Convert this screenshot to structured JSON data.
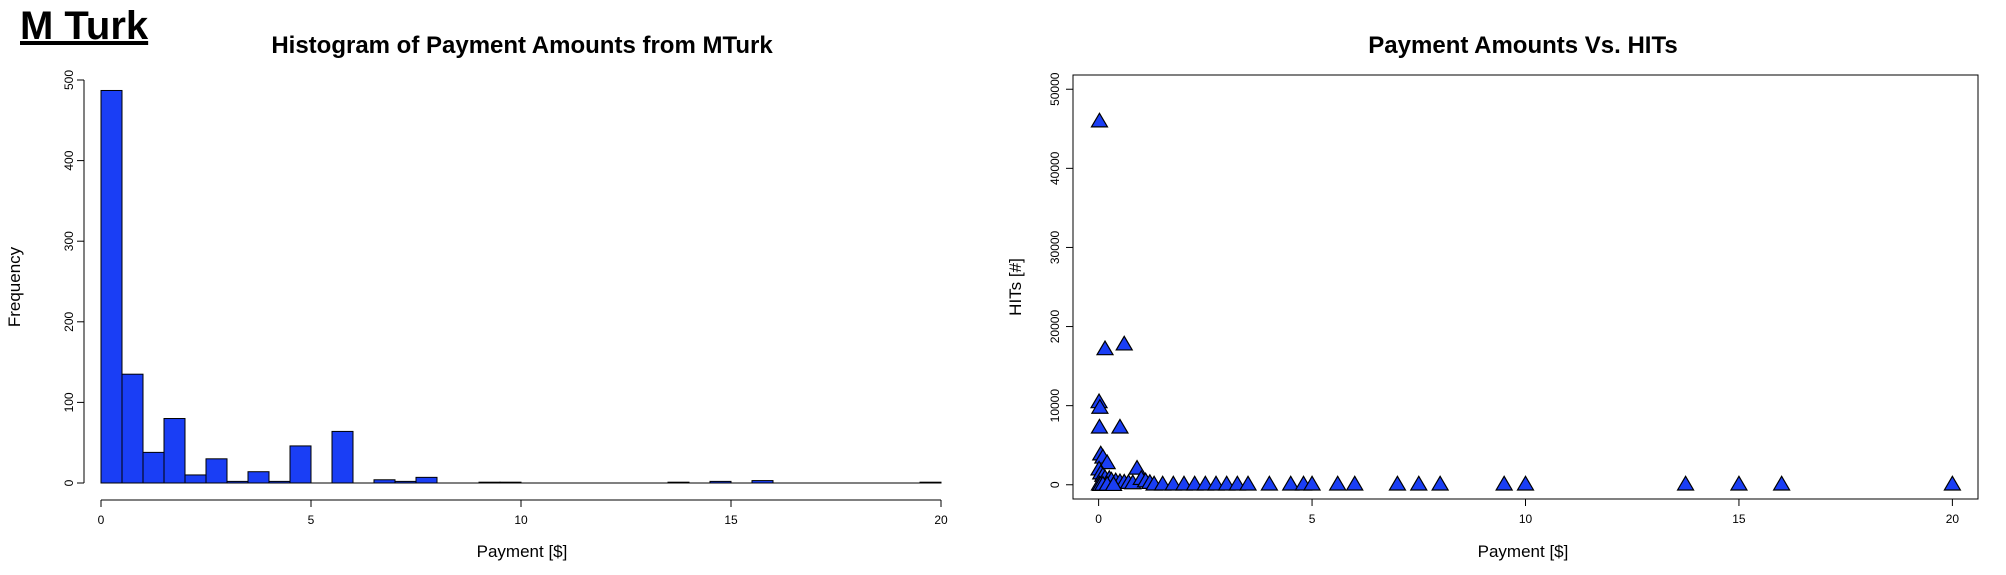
{
  "brand": "M Turk",
  "colors": {
    "fill": "#1a3ef5",
    "stroke": "#000000"
  },
  "chart_data": [
    {
      "type": "bar",
      "title": "Histogram of Payment Amounts from MTurk",
      "xlabel": "Payment [$]",
      "ylabel": "Frequency",
      "xlim": [
        0,
        20
      ],
      "ylim": [
        0,
        500
      ],
      "xticks": [
        "0",
        "5",
        "10",
        "15",
        "20"
      ],
      "yticks": [
        "0",
        "100",
        "200",
        "300",
        "400",
        "500"
      ],
      "bin_width": 0.5,
      "bins": [
        {
          "x0": 0,
          "x1": 0.5,
          "count": 487
        },
        {
          "x0": 0.5,
          "x1": 1,
          "count": 135
        },
        {
          "x0": 1,
          "x1": 1.5,
          "count": 38
        },
        {
          "x0": 1.5,
          "x1": 2,
          "count": 80
        },
        {
          "x0": 2,
          "x1": 2.5,
          "count": 10
        },
        {
          "x0": 2.5,
          "x1": 3,
          "count": 30
        },
        {
          "x0": 3,
          "x1": 3.5,
          "count": 2
        },
        {
          "x0": 3.5,
          "x1": 4,
          "count": 14
        },
        {
          "x0": 4,
          "x1": 4.5,
          "count": 2
        },
        {
          "x0": 4.5,
          "x1": 5,
          "count": 46
        },
        {
          "x0": 5,
          "x1": 5.5,
          "count": 0
        },
        {
          "x0": 5.5,
          "x1": 6,
          "count": 64
        },
        {
          "x0": 6,
          "x1": 6.5,
          "count": 0
        },
        {
          "x0": 6.5,
          "x1": 7,
          "count": 4
        },
        {
          "x0": 7,
          "x1": 7.5,
          "count": 2
        },
        {
          "x0": 7.5,
          "x1": 8,
          "count": 7
        },
        {
          "x0": 8,
          "x1": 8.5,
          "count": 0
        },
        {
          "x0": 8.5,
          "x1": 9,
          "count": 0
        },
        {
          "x0": 9,
          "x1": 9.5,
          "count": 1
        },
        {
          "x0": 9.5,
          "x1": 10,
          "count": 1
        },
        {
          "x0": 10,
          "x1": 10.5,
          "count": 0
        },
        {
          "x0": 10.5,
          "x1": 11,
          "count": 0
        },
        {
          "x0": 11,
          "x1": 11.5,
          "count": 0
        },
        {
          "x0": 11.5,
          "x1": 12,
          "count": 0
        },
        {
          "x0": 12,
          "x1": 12.5,
          "count": 0
        },
        {
          "x0": 12.5,
          "x1": 13,
          "count": 0
        },
        {
          "x0": 13,
          "x1": 13.5,
          "count": 0
        },
        {
          "x0": 13.5,
          "x1": 14,
          "count": 1
        },
        {
          "x0": 14,
          "x1": 14.5,
          "count": 0
        },
        {
          "x0": 14.5,
          "x1": 15,
          "count": 2
        },
        {
          "x0": 15,
          "x1": 15.5,
          "count": 0
        },
        {
          "x0": 15.5,
          "x1": 16,
          "count": 3
        },
        {
          "x0": 16,
          "x1": 16.5,
          "count": 0
        },
        {
          "x0": 16.5,
          "x1": 17,
          "count": 0
        },
        {
          "x0": 17,
          "x1": 17.5,
          "count": 0
        },
        {
          "x0": 17.5,
          "x1": 18,
          "count": 0
        },
        {
          "x0": 18,
          "x1": 18.5,
          "count": 0
        },
        {
          "x0": 18.5,
          "x1": 19,
          "count": 0
        },
        {
          "x0": 19,
          "x1": 19.5,
          "count": 0
        },
        {
          "x0": 19.5,
          "x1": 20,
          "count": 1
        }
      ]
    },
    {
      "type": "scatter",
      "title": "Payment Amounts Vs. HITs",
      "xlabel": "Payment [$]",
      "ylabel": "HITs [#]",
      "xlim": [
        -0.6,
        20.6
      ],
      "ylim": [
        -1800,
        51800
      ],
      "xticks": [
        "0",
        "5",
        "10",
        "15",
        "20"
      ],
      "yticks": [
        "0",
        "10000",
        "20000",
        "30000",
        "40000",
        "50000"
      ],
      "marker": "filled-triangle",
      "points": [
        {
          "x": 0.02,
          "y": 46000
        },
        {
          "x": 0.15,
          "y": 17200
        },
        {
          "x": 0.6,
          "y": 17800
        },
        {
          "x": 0.01,
          "y": 10500
        },
        {
          "x": 0.03,
          "y": 9800
        },
        {
          "x": 0.02,
          "y": 7300
        },
        {
          "x": 0.5,
          "y": 7300
        },
        {
          "x": 0.05,
          "y": 3900
        },
        {
          "x": 0.1,
          "y": 3500
        },
        {
          "x": 0.2,
          "y": 2800
        },
        {
          "x": 0.9,
          "y": 2100
        },
        {
          "x": 0.01,
          "y": 2000
        },
        {
          "x": 0.05,
          "y": 1500
        },
        {
          "x": 0.1,
          "y": 1200
        },
        {
          "x": 0.15,
          "y": 900
        },
        {
          "x": 0.25,
          "y": 800
        },
        {
          "x": 0.3,
          "y": 600
        },
        {
          "x": 0.4,
          "y": 500
        },
        {
          "x": 0.5,
          "y": 400
        },
        {
          "x": 0.6,
          "y": 350
        },
        {
          "x": 0.7,
          "y": 300
        },
        {
          "x": 0.8,
          "y": 250
        },
        {
          "x": 1.0,
          "y": 800
        },
        {
          "x": 1.1,
          "y": 500
        },
        {
          "x": 1.2,
          "y": 300
        },
        {
          "x": 0.02,
          "y": 100
        },
        {
          "x": 0.05,
          "y": 50
        },
        {
          "x": 0.1,
          "y": 80
        },
        {
          "x": 0.2,
          "y": 60
        },
        {
          "x": 0.35,
          "y": 40
        },
        {
          "x": 1.3,
          "y": 100
        },
        {
          "x": 1.5,
          "y": 100
        },
        {
          "x": 1.75,
          "y": 100
        },
        {
          "x": 2.0,
          "y": 100
        },
        {
          "x": 2.25,
          "y": 100
        },
        {
          "x": 2.5,
          "y": 100
        },
        {
          "x": 2.75,
          "y": 100
        },
        {
          "x": 3.0,
          "y": 100
        },
        {
          "x": 3.25,
          "y": 100
        },
        {
          "x": 3.5,
          "y": 100
        },
        {
          "x": 4.0,
          "y": 100
        },
        {
          "x": 4.5,
          "y": 100
        },
        {
          "x": 4.8,
          "y": 100
        },
        {
          "x": 5.0,
          "y": 100
        },
        {
          "x": 5.6,
          "y": 100
        },
        {
          "x": 6.0,
          "y": 100
        },
        {
          "x": 7.0,
          "y": 100
        },
        {
          "x": 7.5,
          "y": 100
        },
        {
          "x": 8.0,
          "y": 100
        },
        {
          "x": 9.5,
          "y": 100
        },
        {
          "x": 10.0,
          "y": 100
        },
        {
          "x": 13.75,
          "y": 100
        },
        {
          "x": 15.0,
          "y": 100
        },
        {
          "x": 16.0,
          "y": 100
        },
        {
          "x": 20.0,
          "y": 100
        }
      ]
    }
  ]
}
